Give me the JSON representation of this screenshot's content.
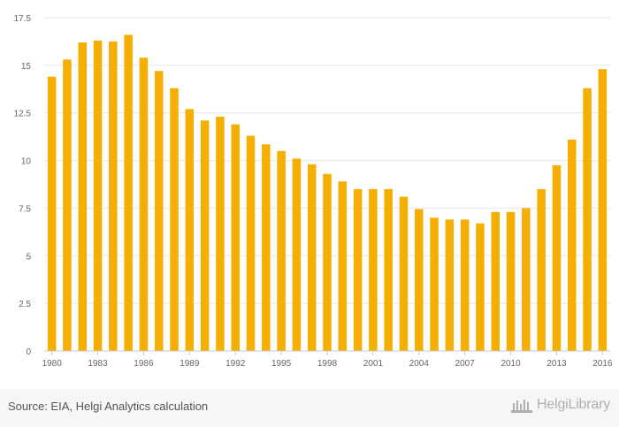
{
  "chart_data": {
    "type": "bar",
    "title": "",
    "xlabel": "",
    "ylabel": "",
    "categories": [
      "1980",
      "1981",
      "1982",
      "1983",
      "1984",
      "1985",
      "1986",
      "1987",
      "1988",
      "1989",
      "1990",
      "1991",
      "1992",
      "1993",
      "1994",
      "1995",
      "1996",
      "1997",
      "1998",
      "1999",
      "2000",
      "2001",
      "2002",
      "2003",
      "2004",
      "2005",
      "2006",
      "2007",
      "2008",
      "2009",
      "2010",
      "2011",
      "2012",
      "2013",
      "2014",
      "2015",
      "2016"
    ],
    "values": [
      14.4,
      15.3,
      16.2,
      16.3,
      16.25,
      16.6,
      15.4,
      14.7,
      13.8,
      12.7,
      12.1,
      12.3,
      11.9,
      11.3,
      10.85,
      10.5,
      10.1,
      9.8,
      9.3,
      8.9,
      8.5,
      8.5,
      8.5,
      8.1,
      7.45,
      7.0,
      6.9,
      6.9,
      6.7,
      7.3,
      7.3,
      7.5,
      8.5,
      9.75,
      11.1,
      13.8,
      14.8
    ],
    "ylim": [
      0,
      17.5
    ],
    "yticks": [
      0,
      2.5,
      5,
      7.5,
      10,
      12.5,
      15,
      17.5
    ],
    "ytick_labels": [
      "0",
      "2.5",
      "5",
      "7.5",
      "10",
      "12.5",
      "15",
      "17.5"
    ],
    "xtick_labels": [
      "1980",
      "1983",
      "1986",
      "1989",
      "1992",
      "1995",
      "1998",
      "2001",
      "2004",
      "2007",
      "2010",
      "2013",
      "2016"
    ],
    "grid": true,
    "legend": "none",
    "bar_color": "#f5ae02"
  },
  "footer": {
    "source": "Source: EIA, Helgi Analytics calculation",
    "brand": "HelgiLibrary"
  }
}
